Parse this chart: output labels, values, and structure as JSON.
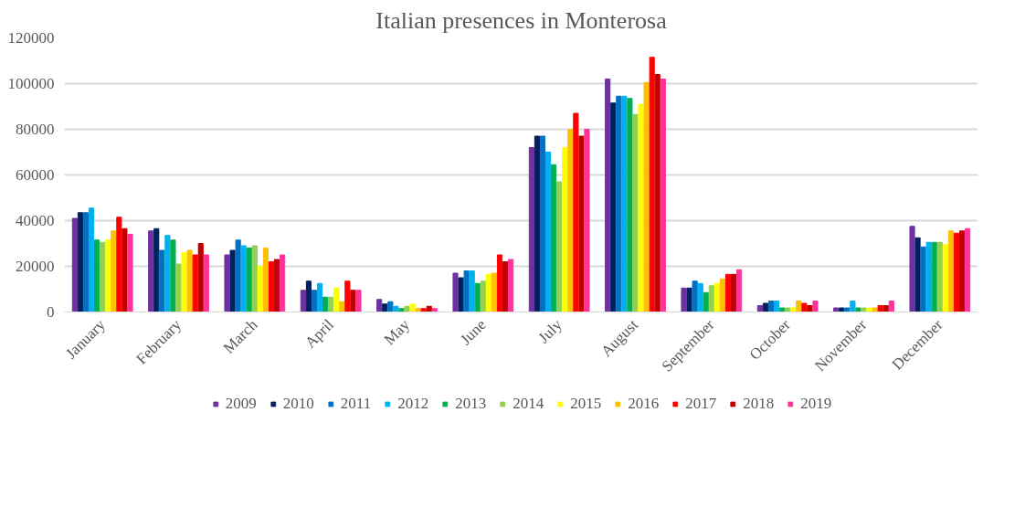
{
  "chart_data": {
    "type": "bar",
    "title": "Italian presences in Monterosa",
    "categories": [
      "January",
      "February",
      "March",
      "April",
      "May",
      "June",
      "July",
      "August",
      "September",
      "October",
      "November",
      "December"
    ],
    "series": [
      {
        "name": "2009",
        "color": "#7030a0",
        "values": [
          41000,
          35500,
          25000,
          9500,
          5500,
          17000,
          72000,
          102000,
          10500,
          2800,
          1800,
          37500
        ]
      },
      {
        "name": "2010",
        "color": "#002060",
        "values": [
          43500,
          36500,
          27000,
          13500,
          3500,
          15000,
          77000,
          91500,
          10500,
          3800,
          1800,
          32500
        ]
      },
      {
        "name": "2011",
        "color": "#0070c0",
        "values": [
          43500,
          27000,
          31500,
          9500,
          4500,
          18000,
          77000,
          94500,
          13500,
          4800,
          1800,
          28500
        ]
      },
      {
        "name": "2012",
        "color": "#00b0f0",
        "values": [
          45500,
          33500,
          29000,
          12500,
          2500,
          18000,
          70000,
          94500,
          12500,
          4800,
          4800,
          30500
        ]
      },
      {
        "name": "2013",
        "color": "#00b050",
        "values": [
          31500,
          31500,
          28000,
          6500,
          1500,
          12500,
          64500,
          93500,
          8500,
          1800,
          1800,
          30500
        ]
      },
      {
        "name": "2014",
        "color": "#92d050",
        "values": [
          30500,
          21000,
          29000,
          6500,
          2500,
          13500,
          57000,
          86500,
          11500,
          1800,
          1800,
          30500
        ]
      },
      {
        "name": "2015",
        "color": "#ffff00",
        "values": [
          31500,
          26000,
          20000,
          10500,
          3500,
          16500,
          72000,
          91000,
          12500,
          1800,
          1800,
          29500
        ]
      },
      {
        "name": "2016",
        "color": "#ffc000",
        "values": [
          35500,
          27000,
          28000,
          4500,
          1500,
          17000,
          80000,
          100500,
          14500,
          4800,
          1800,
          35500
        ]
      },
      {
        "name": "2017",
        "color": "#ff0000",
        "values": [
          41500,
          25000,
          22000,
          13500,
          1500,
          25000,
          87000,
          111500,
          16500,
          3800,
          2800,
          34500
        ]
      },
      {
        "name": "2018",
        "color": "#c00000",
        "values": [
          36500,
          30000,
          23000,
          9500,
          2500,
          22000,
          77000,
          104000,
          16500,
          2800,
          2800,
          35500
        ]
      },
      {
        "name": "2019",
        "color": "#ff3399",
        "values": [
          34000,
          25000,
          25000,
          9500,
          1500,
          23000,
          80000,
          102000,
          18500,
          4800,
          4800,
          36500
        ]
      }
    ],
    "ylim": [
      0,
      120000
    ],
    "yticks": [
      0,
      20000,
      40000,
      60000,
      80000,
      100000,
      120000
    ],
    "grid": "y",
    "legend": "bottom"
  }
}
